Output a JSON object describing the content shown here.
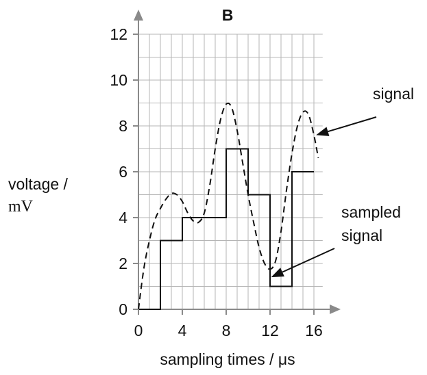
{
  "chart_data": {
    "type": "line",
    "title": "B",
    "xlabel": "sampling times / μs",
    "ylabel_line1": "voltage /",
    "ylabel_line2": "mV",
    "xlim": [
      0,
      16.8
    ],
    "ylim": [
      0,
      12
    ],
    "x_ticks": [
      0,
      4,
      8,
      12,
      16
    ],
    "y_ticks": [
      0,
      2,
      4,
      6,
      8,
      10,
      12
    ],
    "grid": true,
    "grid_x_step": 1,
    "grid_y_step": 1,
    "series": [
      {
        "style": "dashed",
        "points": [
          [
            0,
            0
          ],
          [
            0.5,
            1.8
          ],
          [
            1,
            3.0
          ],
          [
            1.5,
            3.9
          ],
          [
            2,
            4.4
          ],
          [
            2.5,
            4.8
          ],
          [
            3,
            5.05
          ],
          [
            3.5,
            5.0
          ],
          [
            4,
            4.7
          ],
          [
            4.5,
            4.2
          ],
          [
            5,
            3.85
          ],
          [
            5.5,
            3.8
          ],
          [
            6,
            4.2
          ],
          [
            6.5,
            5.4
          ],
          [
            7,
            7.0
          ],
          [
            7.5,
            8.3
          ],
          [
            8,
            8.95
          ],
          [
            8.5,
            8.8
          ],
          [
            9,
            7.8
          ],
          [
            9.5,
            6.4
          ],
          [
            10,
            5.0
          ],
          [
            10.5,
            3.8
          ],
          [
            11,
            2.7
          ],
          [
            11.5,
            2.0
          ],
          [
            12,
            1.75
          ],
          [
            12.5,
            2.1
          ],
          [
            13,
            3.4
          ],
          [
            13.5,
            5.2
          ],
          [
            14,
            6.8
          ],
          [
            14.5,
            8.0
          ],
          [
            15,
            8.6
          ],
          [
            15.5,
            8.5
          ],
          [
            16,
            7.6
          ],
          [
            16.4,
            6.6
          ]
        ]
      },
      {
        "style": "step",
        "points": [
          [
            0,
            0
          ],
          [
            2,
            0
          ],
          [
            2,
            3
          ],
          [
            4,
            3
          ],
          [
            4,
            4
          ],
          [
            8,
            4
          ],
          [
            8,
            7
          ],
          [
            10,
            7
          ],
          [
            10,
            5
          ],
          [
            12,
            5
          ],
          [
            12,
            1
          ],
          [
            14,
            1
          ],
          [
            14,
            6
          ],
          [
            16,
            6
          ]
        ]
      }
    ],
    "annotations": [
      {
        "text": "signal",
        "lines": [
          "signal"
        ],
        "target": [
          16.2,
          7.6
        ]
      },
      {
        "text": "sampled signal",
        "lines": [
          "sampled",
          "signal"
        ],
        "target": [
          12.1,
          1.4
        ]
      }
    ]
  }
}
